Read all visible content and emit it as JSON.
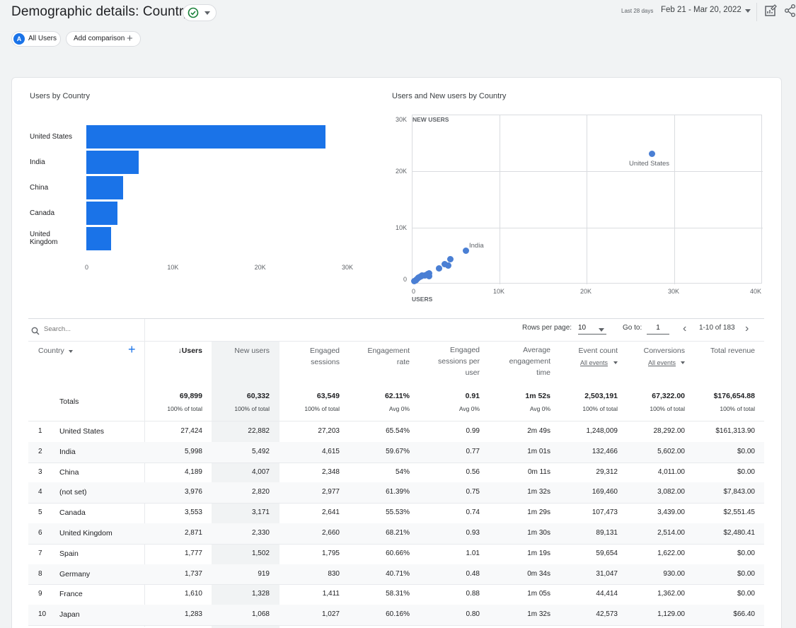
{
  "header": {
    "title": "Demographic details: Country",
    "date_label": "Last 28 days",
    "date_range": "Feb 21 - Mar 20, 2022"
  },
  "comparisons": {
    "avatar_letter": "A",
    "all_users": "All Users",
    "add_comparison": "Add comparison"
  },
  "bar_chart": {
    "title": "Users by Country",
    "ticks": [
      "0",
      "10K",
      "20K",
      "30K"
    ]
  },
  "scatter_chart": {
    "title": "Users and New users by Country",
    "y_ticks": [
      "30K",
      "20K",
      "10K",
      "0"
    ],
    "x_ticks": [
      "0",
      "10K",
      "20K",
      "30K",
      "40K"
    ],
    "y_axis_name": "NEW USERS",
    "x_axis_name": "USERS",
    "label_us": "United States",
    "label_india": "India"
  },
  "chart_data": [
    {
      "type": "bar",
      "title": "Users by Country",
      "categories": [
        "United States",
        "India",
        "China",
        "Canada",
        "United Kingdom"
      ],
      "values": [
        27424,
        5998,
        4189,
        3553,
        2871
      ],
      "xlim": [
        0,
        30000
      ]
    },
    {
      "type": "scatter",
      "title": "Users and New users by Country",
      "xlabel": "USERS",
      "ylabel": "NEW USERS",
      "xlim": [
        0,
        40000
      ],
      "ylim": [
        0,
        30000
      ],
      "labeled_points": [
        "United States",
        "India"
      ]
    }
  ],
  "table_controls": {
    "search_placeholder": "Search...",
    "rows_per_page_label": "Rows per page:",
    "rows_per_page": "10",
    "goto_label": "Go to:",
    "goto_value": "1",
    "range": "1-10 of 183"
  },
  "columns": {
    "country": "Country",
    "users": "↓Users",
    "new_users": "New users",
    "engaged_sessions_1": "Engaged",
    "engaged_sessions_2": "sessions",
    "engagement_rate_1": "Engagement",
    "engagement_rate_2": "rate",
    "esp_1": "Engaged",
    "esp_2": "sessions per",
    "esp_3": "user",
    "aet_1": "Average",
    "aet_2": "engagement",
    "aet_3": "time",
    "event_count": "Event count",
    "event_count_sub": "All events",
    "conversions": "Conversions",
    "conversions_sub": "All events",
    "total_revenue": "Total revenue"
  },
  "totals": {
    "label": "Totals",
    "users": "69,899",
    "users_sub": "100% of total",
    "new_users": "60,332",
    "new_users_sub": "100% of total",
    "engaged_sessions": "63,549",
    "engaged_sessions_sub": "100% of total",
    "engagement_rate": "62.11%",
    "engagement_rate_sub": "Avg 0%",
    "esp": "0.91",
    "esp_sub": "Avg 0%",
    "aet": "1m 52s",
    "aet_sub": "Avg 0%",
    "event_count": "2,503,191",
    "event_count_sub": "100% of total",
    "conversions": "67,322.00",
    "conversions_sub": "100% of total",
    "revenue": "$176,654.88",
    "revenue_sub": "100% of total"
  },
  "rows": [
    [
      "1",
      "United States",
      "27,424",
      "22,882",
      "27,203",
      "65.54%",
      "0.99",
      "2m 49s",
      "1,248,009",
      "28,292.00",
      "$161,313.90"
    ],
    [
      "2",
      "India",
      "5,998",
      "5,492",
      "4,615",
      "59.67%",
      "0.77",
      "1m 01s",
      "132,466",
      "5,602.00",
      "$0.00"
    ],
    [
      "3",
      "China",
      "4,189",
      "4,007",
      "2,348",
      "54%",
      "0.56",
      "0m 11s",
      "29,312",
      "4,011.00",
      "$0.00"
    ],
    [
      "4",
      "(not set)",
      "3,976",
      "2,820",
      "2,977",
      "61.39%",
      "0.75",
      "1m 32s",
      "169,460",
      "3,082.00",
      "$7,843.00"
    ],
    [
      "5",
      "Canada",
      "3,553",
      "3,171",
      "2,641",
      "55.53%",
      "0.74",
      "1m 29s",
      "107,473",
      "3,439.00",
      "$2,551.45"
    ],
    [
      "6",
      "United Kingdom",
      "2,871",
      "2,330",
      "2,660",
      "68.21%",
      "0.93",
      "1m 30s",
      "89,131",
      "2,514.00",
      "$2,480.41"
    ],
    [
      "7",
      "Spain",
      "1,777",
      "1,502",
      "1,795",
      "60.66%",
      "1.01",
      "1m 19s",
      "59,654",
      "1,622.00",
      "$0.00"
    ],
    [
      "8",
      "Germany",
      "1,737",
      "919",
      "830",
      "40.71%",
      "0.48",
      "0m 34s",
      "31,047",
      "930.00",
      "$0.00"
    ],
    [
      "9",
      "France",
      "1,610",
      "1,328",
      "1,411",
      "58.31%",
      "0.88",
      "1m 05s",
      "44,414",
      "1,362.00",
      "$0.00"
    ],
    [
      "10",
      "Japan",
      "1,283",
      "1,068",
      "1,027",
      "60.16%",
      "0.80",
      "1m 32s",
      "42,573",
      "1,129.00",
      "$66.40"
    ]
  ]
}
